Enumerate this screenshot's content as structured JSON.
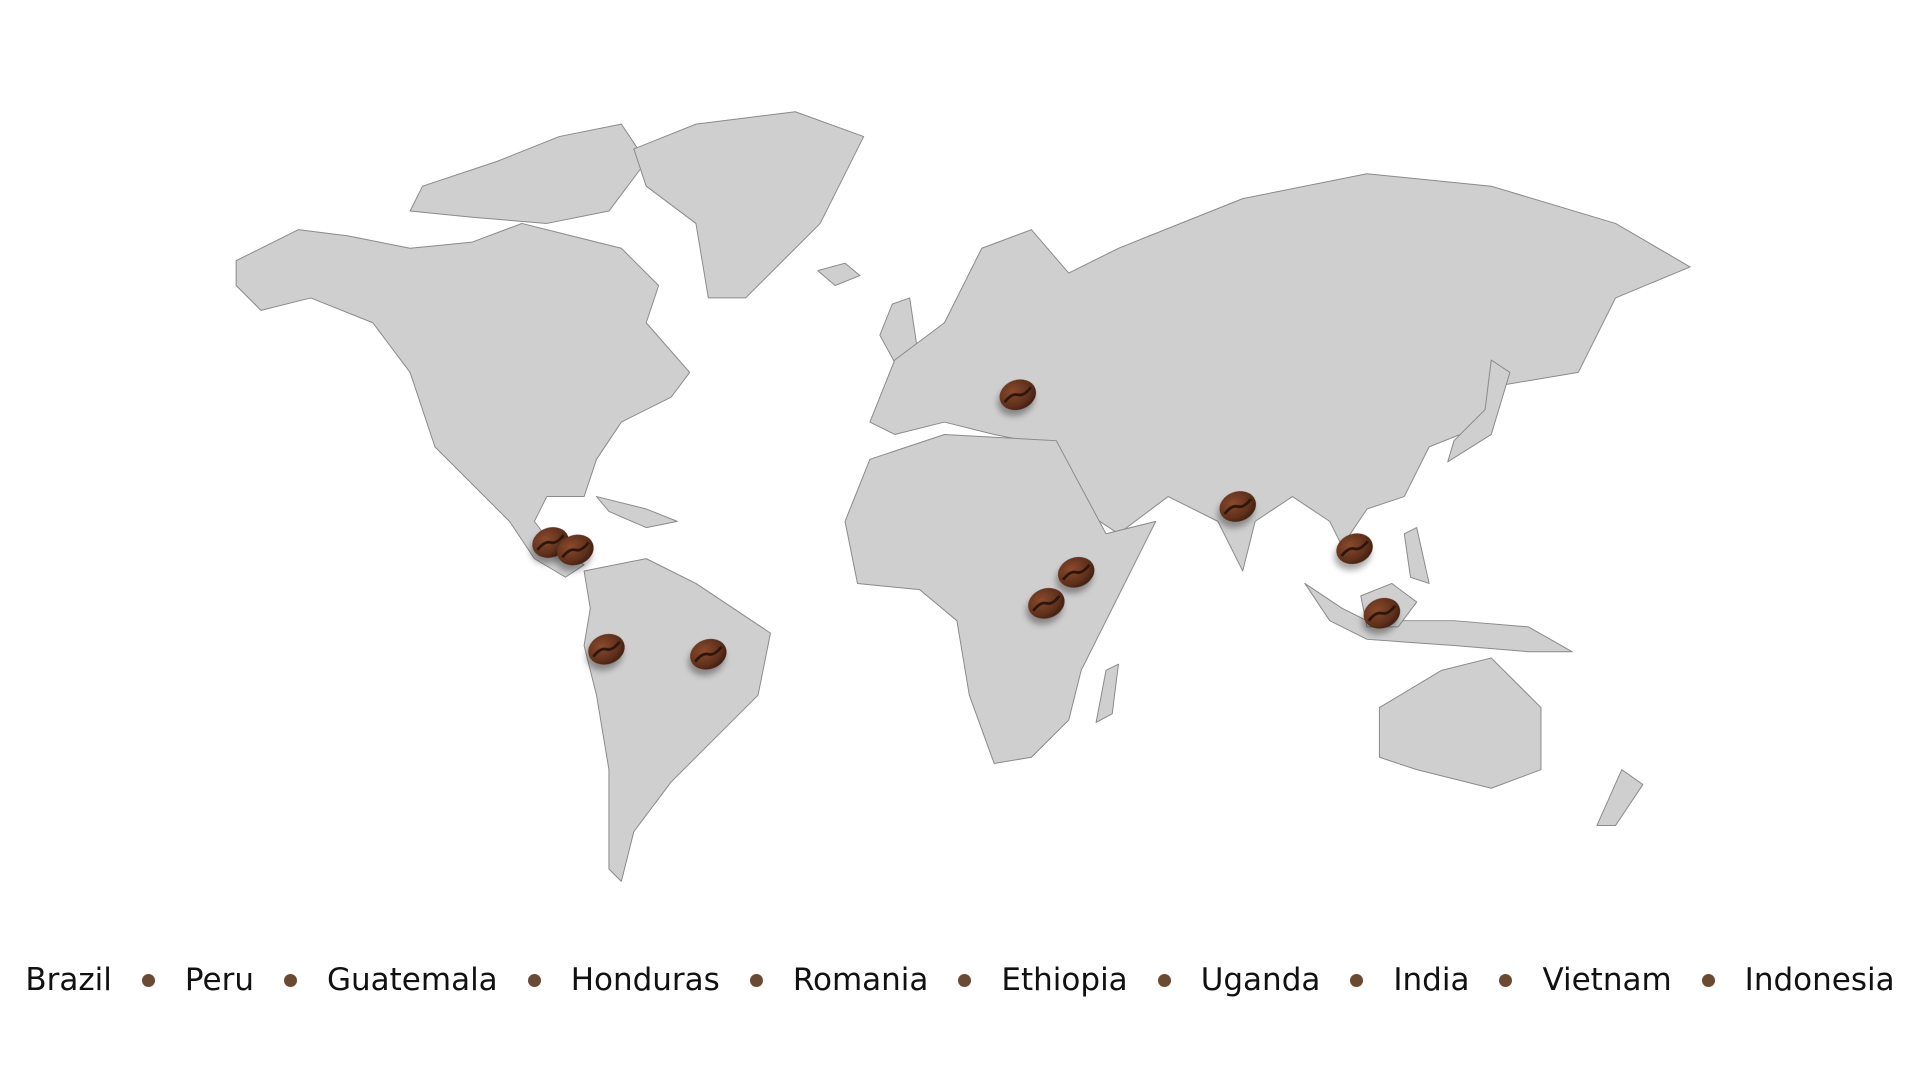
{
  "map": {
    "land_color": "#cfcfcf",
    "border_color": "#8a8a8a",
    "marker_icon": "coffee-bean-icon",
    "marker_color": "#6b3a22",
    "markers": [
      "Guatemala",
      "Honduras",
      "Peru",
      "Brazil",
      "Romania",
      "Ethiopia",
      "Uganda",
      "India",
      "Vietnam",
      "Indonesia"
    ]
  },
  "legend": {
    "separator_color": "#6b4a34",
    "items": [
      "Brazil",
      "Peru",
      "Guatemala",
      "Honduras",
      "Romania",
      "Ethiopia",
      "Uganda",
      "India",
      "Vietnam",
      "Indonesia"
    ]
  }
}
